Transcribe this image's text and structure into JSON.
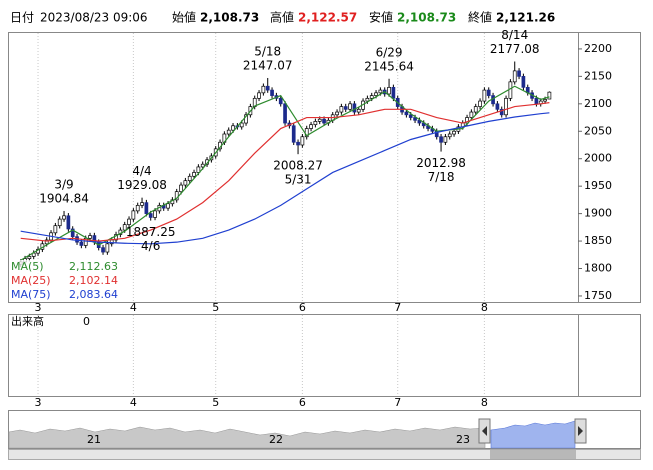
{
  "chart_data": {
    "type": "candlestick",
    "header": {
      "date_label": "日付",
      "date": "2023/08/23 09:06",
      "open_label": "始値",
      "open": "2,108.73",
      "high_label": "高値",
      "high": "2,122.57",
      "low_label": "安値",
      "low": "2,108.73",
      "close_label": "終値",
      "close": "2,121.26"
    },
    "open": [
      1808,
      1812,
      1818,
      1822,
      1828,
      1835,
      1845,
      1852,
      1865,
      1878,
      1890,
      1896,
      1872,
      1858,
      1848,
      1842,
      1855,
      1860,
      1848,
      1838,
      1830,
      1845,
      1852,
      1862,
      1870,
      1880,
      1890,
      1905,
      1915,
      1920,
      1900,
      1893,
      1905,
      1915,
      1910,
      1918,
      1925,
      1940,
      1952,
      1960,
      1968,
      1975,
      1985,
      1990,
      1998,
      2005,
      2018,
      2030,
      2045,
      2052,
      2060,
      2058,
      2065,
      2080,
      2095,
      2110,
      2120,
      2132,
      2125,
      2115,
      2110,
      2100,
      2065,
      2060,
      2030,
      2025,
      2040,
      2055,
      2062,
      2068,
      2072,
      2065,
      2070,
      2080,
      2085,
      2095,
      2090,
      2100,
      2085,
      2090,
      2105,
      2110,
      2115,
      2120,
      2125,
      2118,
      2130,
      2110,
      2095,
      2085,
      2080,
      2075,
      2070,
      2065,
      2060,
      2055,
      2050,
      2040,
      2030,
      2040,
      2045,
      2050,
      2058,
      2065,
      2075,
      2085,
      2095,
      2105,
      2125,
      2115,
      2100,
      2090,
      2080,
      2110,
      2140,
      2160,
      2150,
      2130,
      2120,
      2110,
      2100,
      2105,
      2108.73
    ],
    "high": [
      1817,
      1823,
      1827,
      1833,
      1840,
      1850,
      1857,
      1870,
      1883,
      1895,
      1904.84,
      1901,
      1877,
      1863,
      1853,
      1860,
      1865,
      1865,
      1853,
      1843,
      1850,
      1857,
      1867,
      1875,
      1885,
      1895,
      1910,
      1920,
      1929.08,
      1925,
      1905,
      1910,
      1920,
      1920,
      1923,
      1930,
      1945,
      1957,
      1965,
      1973,
      1980,
      1990,
      1995,
      2003,
      2010,
      2023,
      2035,
      2050,
      2057,
      2065,
      2065,
      2070,
      2085,
      2100,
      2115,
      2125,
      2137,
      2147.07,
      2130,
      2120,
      2115,
      2105,
      2070,
      2065,
      2035,
      2045,
      2060,
      2067,
      2073,
      2077,
      2077,
      2075,
      2085,
      2090,
      2100,
      2100,
      2105,
      2105,
      2095,
      2110,
      2115,
      2120,
      2125,
      2130,
      2130,
      2145.64,
      2135,
      2115,
      2100,
      2090,
      2085,
      2080,
      2075,
      2070,
      2065,
      2060,
      2055,
      2045,
      2045,
      2050,
      2055,
      2063,
      2070,
      2080,
      2090,
      2100,
      2110,
      2130,
      2130,
      2120,
      2105,
      2095,
      2115,
      2145,
      2177.08,
      2165,
      2155,
      2135,
      2125,
      2115,
      2110,
      2113,
      2122.57
    ],
    "low": [
      1803,
      1807,
      1813,
      1817,
      1823,
      1830,
      1840,
      1847,
      1860,
      1873,
      1885,
      1867,
      1853,
      1843,
      1837,
      1837,
      1850,
      1843,
      1833,
      1825,
      1825,
      1840,
      1847,
      1857,
      1865,
      1875,
      1885,
      1900,
      1910,
      1895,
      1887.25,
      1888,
      1900,
      1905,
      1905,
      1913,
      1920,
      1935,
      1947,
      1955,
      1963,
      1970,
      1980,
      1985,
      1993,
      2000,
      2013,
      2025,
      2040,
      2047,
      2053,
      2053,
      2060,
      2075,
      2090,
      2105,
      2115,
      2120,
      2110,
      2105,
      2095,
      2060,
      2055,
      2025,
      2008.27,
      2020,
      2035,
      2050,
      2057,
      2063,
      2060,
      2060,
      2065,
      2075,
      2080,
      2085,
      2085,
      2080,
      2080,
      2085,
      2100,
      2105,
      2110,
      2115,
      2113,
      2113,
      2105,
      2090,
      2080,
      2075,
      2070,
      2065,
      2060,
      2055,
      2050,
      2045,
      2035,
      2012.98,
      2025,
      2035,
      2040,
      2045,
      2053,
      2060,
      2070,
      2080,
      2090,
      2100,
      2110,
      2095,
      2085,
      2075,
      2075,
      2105,
      2135,
      2145,
      2125,
      2115,
      2105,
      2095,
      2095,
      2100,
      2108.73
    ],
    "close": [
      1812,
      1818,
      1822,
      1828,
      1835,
      1845,
      1852,
      1865,
      1878,
      1890,
      1896,
      1872,
      1858,
      1848,
      1842,
      1855,
      1860,
      1848,
      1838,
      1830,
      1845,
      1852,
      1862,
      1870,
      1880,
      1890,
      1905,
      1915,
      1920,
      1900,
      1893,
      1905,
      1915,
      1910,
      1918,
      1925,
      1940,
      1952,
      1960,
      1968,
      1975,
      1985,
      1990,
      1998,
      2005,
      2018,
      2030,
      2045,
      2052,
      2060,
      2058,
      2065,
      2080,
      2095,
      2110,
      2120,
      2132,
      2125,
      2115,
      2110,
      2100,
      2065,
      2060,
      2030,
      2025,
      2040,
      2055,
      2062,
      2068,
      2072,
      2065,
      2070,
      2080,
      2085,
      2095,
      2090,
      2100,
      2085,
      2090,
      2105,
      2110,
      2115,
      2120,
      2125,
      2118,
      2130,
      2110,
      2095,
      2085,
      2080,
      2075,
      2070,
      2065,
      2060,
      2055,
      2050,
      2040,
      2030,
      2040,
      2045,
      2050,
      2058,
      2065,
      2075,
      2085,
      2095,
      2105,
      2125,
      2115,
      2100,
      2090,
      2080,
      2110,
      2140,
      2160,
      2150,
      2130,
      2120,
      2110,
      2100,
      2105,
      2108,
      2121.26
    ],
    "up_color": "#ffffff",
    "down_color": "#1c2a8c",
    "series": [
      {
        "name": "MA(5)",
        "color": "#2e8b2e",
        "current": "2,112.63",
        "x": [
          0,
          6,
          12,
          18,
          24,
          30,
          36,
          42,
          48,
          54,
          60,
          66,
          72,
          78,
          84,
          90,
          96,
          102,
          108,
          114,
          120,
          122
        ],
        "values": [
          1815,
          1843,
          1870,
          1843,
          1868,
          1903,
          1928,
          1982,
          2040,
          2096,
          2115,
          2042,
          2070,
          2094,
          2122,
          2082,
          2050,
          2055,
          2105,
          2132,
          2108,
          2112.63
        ]
      },
      {
        "name": "MA(25)",
        "color": "#e03030",
        "current": "2,102.14",
        "x": [
          0,
          6,
          12,
          18,
          24,
          30,
          36,
          42,
          48,
          54,
          60,
          66,
          72,
          78,
          84,
          90,
          96,
          102,
          108,
          114,
          120,
          122
        ],
        "values": [
          1855,
          1850,
          1855,
          1850,
          1855,
          1870,
          1890,
          1920,
          1960,
          2010,
          2055,
          2075,
          2075,
          2080,
          2090,
          2090,
          2075,
          2065,
          2080,
          2095,
          2100,
          2102.14
        ]
      },
      {
        "name": "MA(75)",
        "color": "#2040d0",
        "current": "2,083.64",
        "x": [
          0,
          6,
          12,
          18,
          24,
          30,
          36,
          42,
          48,
          54,
          60,
          66,
          72,
          78,
          84,
          90,
          96,
          102,
          108,
          114,
          120,
          122
        ],
        "values": [
          1868,
          1860,
          1852,
          1848,
          1846,
          1845,
          1848,
          1855,
          1870,
          1890,
          1915,
          1945,
          1975,
          1995,
          2015,
          2035,
          2048,
          2058,
          2068,
          2076,
          2082,
          2083.64
        ]
      }
    ],
    "annotations": [
      {
        "date": "3/9",
        "value": 1904.84
      },
      {
        "date": "4/4",
        "value": 1929.08
      },
      {
        "date": "4/6",
        "value": 1887.25
      },
      {
        "date": "5/18",
        "value": 2147.07
      },
      {
        "date": "5/31",
        "value": 2008.27
      },
      {
        "date": "6/29",
        "value": 2145.64
      },
      {
        "date": "7/18",
        "value": 2012.98
      },
      {
        "date": "8/14",
        "value": 2177.08
      }
    ],
    "xlim": [
      -2.7,
      128.6
    ],
    "xticks": [
      {
        "value": 4,
        "label": "3"
      },
      {
        "value": 26,
        "label": "4"
      },
      {
        "value": 45,
        "label": "5"
      },
      {
        "value": 65,
        "label": "6"
      },
      {
        "value": 87,
        "label": "7"
      },
      {
        "value": 107,
        "label": "8"
      }
    ],
    "ylim": [
      1739,
      2229
    ],
    "yticks": [
      1750,
      1800,
      1850,
      1900,
      1950,
      2000,
      2050,
      2100,
      2150,
      2200
    ],
    "volume": {
      "label": "出来高",
      "value": 0
    },
    "navigator": {
      "labels": [
        "21",
        "22",
        "23"
      ]
    }
  }
}
